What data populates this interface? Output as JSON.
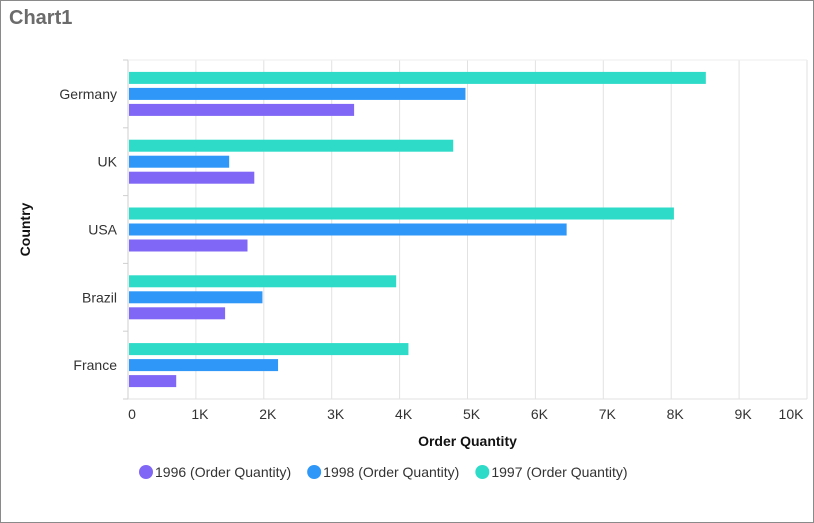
{
  "title": "Chart1",
  "chart_data": {
    "type": "bar",
    "orientation": "horizontal",
    "title": "Chart1",
    "xlabel": "Order Quantity",
    "ylabel": "Country",
    "categories": [
      "Germany",
      "UK",
      "USA",
      "Brazil",
      "France"
    ],
    "xlim": [
      0,
      10000
    ],
    "x_ticks": [
      "0",
      "1K",
      "2K",
      "3K",
      "4K",
      "5K",
      "6K",
      "7K",
      "8K",
      "9K",
      "10K"
    ],
    "grid": true,
    "legend_position": "bottom",
    "series": [
      {
        "name": "1996 (Order Quantity)",
        "color": "#8167f5",
        "values": [
          3330,
          1860,
          1760,
          1430,
          710
        ]
      },
      {
        "name": "1998 (Order Quantity)",
        "color": "#2e97f8",
        "values": [
          4970,
          1490,
          6460,
          1980,
          2210
        ]
      },
      {
        "name": "1997 (Order Quantity)",
        "color": "#2ddbc8",
        "values": [
          8510,
          4790,
          8040,
          3950,
          4130
        ]
      }
    ]
  }
}
